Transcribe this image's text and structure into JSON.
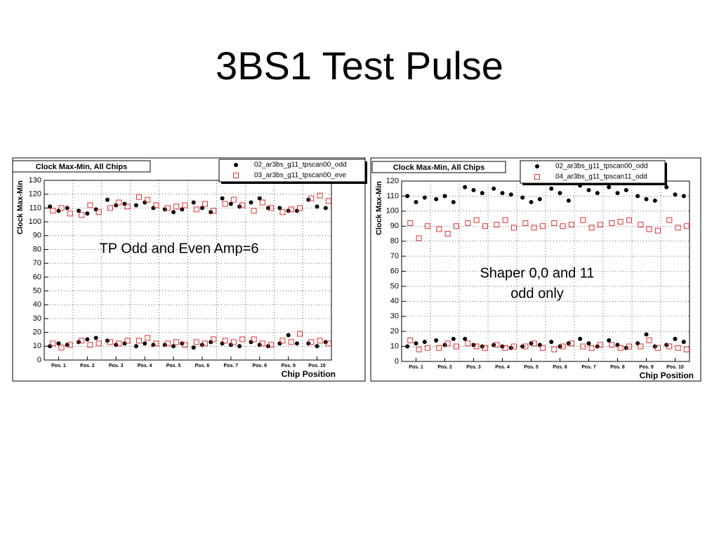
{
  "title": "3BS1 Test Pulse",
  "chart_data": [
    {
      "type": "scatter",
      "title": "Clock Max-Min, All Chips",
      "ylabel": "Clock Max-Min",
      "xlabel": "Chip Position",
      "annotation": [
        "TP Odd and Even  Amp=6"
      ],
      "xlim": [
        0,
        10
      ],
      "ylim": [
        0,
        130
      ],
      "yticks": [
        0,
        10,
        20,
        30,
        40,
        50,
        60,
        70,
        80,
        90,
        100,
        110,
        120,
        130
      ],
      "xticks": [
        {
          "value": 0.5,
          "label": "Pos. 1"
        },
        {
          "value": 1.5,
          "label": "Pos. 2"
        },
        {
          "value": 2.5,
          "label": "Pos. 3"
        },
        {
          "value": 3.5,
          "label": "Pos. 4"
        },
        {
          "value": 4.5,
          "label": "Pos. 5"
        },
        {
          "value": 5.5,
          "label": "Pos. 6"
        },
        {
          "value": 6.5,
          "label": "Pos. 7"
        },
        {
          "value": 7.5,
          "label": "Pos. 8"
        },
        {
          "value": 8.5,
          "label": "Pos. 9"
        },
        {
          "value": 9.5,
          "label": "Pos. 10"
        }
      ],
      "grid": true,
      "series": [
        {
          "name": "02_ar3bs_g11_tpscan00_odd",
          "color": "#000000",
          "marker": "circle",
          "x": [
            0.2,
            0.5,
            0.8,
            0.2,
            0.5,
            0.8,
            1.2,
            1.5,
            1.8,
            1.2,
            1.5,
            1.8,
            2.2,
            2.5,
            2.8,
            2.2,
            2.5,
            2.8,
            3.2,
            3.5,
            3.8,
            3.2,
            3.5,
            3.8,
            4.2,
            4.5,
            4.8,
            4.2,
            4.5,
            4.8,
            5.2,
            5.5,
            5.8,
            5.2,
            5.5,
            5.8,
            6.2,
            6.5,
            6.8,
            6.2,
            6.5,
            6.8,
            7.2,
            7.5,
            7.8,
            7.2,
            7.5,
            7.8,
            8.2,
            8.5,
            8.8,
            8.2,
            8.5,
            8.8,
            9.2,
            9.5,
            9.8,
            9.2,
            9.5,
            9.8
          ],
          "values": [
            111,
            108,
            110,
            10,
            12,
            11,
            108,
            106,
            109,
            13,
            15,
            16,
            116,
            112,
            113,
            14,
            11,
            12,
            112,
            114,
            110,
            10,
            12,
            11,
            109,
            107,
            109,
            11,
            10,
            12,
            114,
            110,
            107,
            9,
            11,
            13,
            117,
            113,
            111,
            12,
            11,
            10,
            114,
            117,
            110,
            13,
            11,
            10,
            110,
            108,
            108,
            12,
            18,
            12,
            116,
            111,
            110,
            12,
            10,
            13
          ]
        },
        {
          "name": "03_ar3bs_g11_tpscan00_eve",
          "color": "#e03030",
          "marker": "square",
          "x": [
            0.3,
            0.6,
            0.9,
            0.3,
            0.6,
            0.9,
            1.3,
            1.6,
            1.9,
            1.3,
            1.6,
            1.9,
            2.3,
            2.6,
            2.9,
            2.3,
            2.6,
            2.9,
            3.3,
            3.6,
            3.9,
            3.3,
            3.6,
            3.9,
            4.3,
            4.6,
            4.9,
            4.3,
            4.6,
            4.9,
            5.3,
            5.6,
            5.9,
            5.3,
            5.6,
            5.9,
            6.3,
            6.6,
            6.9,
            6.3,
            6.6,
            6.9,
            7.3,
            7.6,
            7.9,
            7.3,
            7.6,
            7.9,
            8.3,
            8.6,
            8.9,
            8.3,
            8.6,
            8.9,
            9.3,
            9.6,
            9.9,
            9.3,
            9.6,
            9.9
          ],
          "values": [
            108,
            110,
            106,
            12,
            9,
            11,
            105,
            112,
            107,
            14,
            11,
            12,
            110,
            114,
            111,
            13,
            12,
            14,
            118,
            116,
            112,
            14,
            16,
            12,
            110,
            111,
            112,
            12,
            13,
            11,
            109,
            113,
            108,
            13,
            12,
            15,
            113,
            116,
            112,
            14,
            13,
            15,
            108,
            114,
            110,
            15,
            12,
            11,
            107,
            109,
            110,
            14,
            13,
            19,
            117,
            119,
            115,
            13,
            14,
            12
          ]
        }
      ]
    },
    {
      "type": "scatter",
      "title": "Clock Max-Min, All Chips",
      "ylabel": "Clock Max-Min",
      "xlabel": "Chip Position",
      "annotation": [
        "Shaper  0,0 and 11",
        "odd only"
      ],
      "xlim": [
        0,
        10
      ],
      "ylim": [
        0,
        120
      ],
      "yticks": [
        0,
        10,
        20,
        30,
        40,
        50,
        60,
        70,
        80,
        90,
        100,
        110,
        120
      ],
      "xticks": [
        {
          "value": 0.5,
          "label": "Pos. 1"
        },
        {
          "value": 1.5,
          "label": "Pos. 2"
        },
        {
          "value": 2.5,
          "label": "Pos. 3"
        },
        {
          "value": 3.5,
          "label": "Pos. 4"
        },
        {
          "value": 4.5,
          "label": "Pos. 5"
        },
        {
          "value": 5.5,
          "label": "Pos. 6"
        },
        {
          "value": 6.5,
          "label": "Pos. 7"
        },
        {
          "value": 7.5,
          "label": "Pos. 8"
        },
        {
          "value": 8.5,
          "label": "Pos. 9"
        },
        {
          "value": 9.5,
          "label": "Pos. 10"
        }
      ],
      "grid": true,
      "series": [
        {
          "name": "02_ar3bs_g11_tpscan00_odd",
          "color": "#000000",
          "marker": "circle",
          "x": [
            0.2,
            0.5,
            0.8,
            0.2,
            0.5,
            0.8,
            1.2,
            1.5,
            1.8,
            1.2,
            1.5,
            1.8,
            2.2,
            2.5,
            2.8,
            2.2,
            2.5,
            2.8,
            3.2,
            3.5,
            3.8,
            3.2,
            3.5,
            3.8,
            4.2,
            4.5,
            4.8,
            4.2,
            4.5,
            4.8,
            5.2,
            5.5,
            5.8,
            5.2,
            5.5,
            5.8,
            6.2,
            6.5,
            6.8,
            6.2,
            6.5,
            6.8,
            7.2,
            7.5,
            7.8,
            7.2,
            7.5,
            7.8,
            8.2,
            8.5,
            8.8,
            8.2,
            8.5,
            8.8,
            9.2,
            9.5,
            9.8,
            9.2,
            9.5,
            9.8
          ],
          "values": [
            110,
            106,
            109,
            10,
            12,
            13,
            108,
            110,
            106,
            14,
            11,
            15,
            116,
            114,
            112,
            15,
            11,
            10,
            115,
            112,
            111,
            11,
            10,
            9,
            109,
            106,
            108,
            10,
            12,
            11,
            115,
            112,
            107,
            13,
            10,
            12,
            117,
            114,
            112,
            15,
            12,
            10,
            116,
            112,
            114,
            14,
            11,
            9,
            110,
            108,
            107,
            12,
            18,
            10,
            116,
            111,
            110,
            11,
            15,
            13
          ]
        },
        {
          "name": "04_ar3bs_g11_tpscan11_odd",
          "color": "#e03030",
          "marker": "square",
          "x": [
            0.3,
            0.6,
            0.9,
            0.3,
            0.6,
            0.9,
            1.3,
            1.6,
            1.9,
            1.3,
            1.6,
            1.9,
            2.3,
            2.6,
            2.9,
            2.3,
            2.6,
            2.9,
            3.3,
            3.6,
            3.9,
            3.3,
            3.6,
            3.9,
            4.3,
            4.6,
            4.9,
            4.3,
            4.6,
            4.9,
            5.3,
            5.6,
            5.9,
            5.3,
            5.6,
            5.9,
            6.3,
            6.6,
            6.9,
            6.3,
            6.6,
            6.9,
            7.3,
            7.6,
            7.9,
            7.3,
            7.6,
            7.9,
            8.3,
            8.6,
            8.9,
            8.3,
            8.6,
            8.9,
            9.3,
            9.6,
            9.9,
            9.3,
            9.6,
            9.9
          ],
          "values": [
            92,
            82,
            90,
            14,
            8,
            9,
            88,
            85,
            90,
            9,
            12,
            10,
            92,
            94,
            90,
            12,
            10,
            9,
            91,
            94,
            89,
            11,
            9,
            10,
            92,
            89,
            90,
            10,
            12,
            9,
            92,
            90,
            91,
            8,
            10,
            12,
            94,
            89,
            91,
            10,
            9,
            11,
            92,
            93,
            94,
            11,
            9,
            10,
            91,
            88,
            87,
            10,
            14,
            9,
            94,
            89,
            90,
            10,
            9,
            8
          ]
        }
      ]
    }
  ]
}
